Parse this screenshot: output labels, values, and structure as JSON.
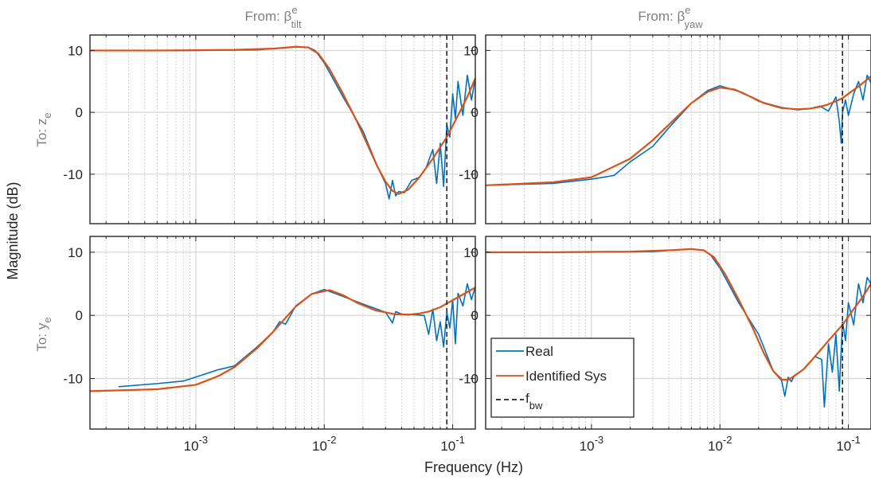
{
  "figure": {
    "xlabel": "Frequency  (Hz)",
    "ylabel": "Magnitude (dB)"
  },
  "columns": [
    {
      "from_label": "From: β",
      "sym_sup": "e",
      "sym_sub": "tilt"
    },
    {
      "from_label": "From: β",
      "sym_sup": "e",
      "sym_sub": "yaw"
    }
  ],
  "rows": [
    {
      "to_label": "To: z",
      "sub": "e"
    },
    {
      "to_label": "To: y",
      "sub": "e"
    }
  ],
  "legend": {
    "items": [
      {
        "label": "Real",
        "color": "#0072BD",
        "dash": false
      },
      {
        "label": "Identified Sys",
        "color": "#D95319",
        "dash": false
      },
      {
        "label": "f",
        "sub": "bw",
        "color": "#262626",
        "dash": true
      }
    ]
  },
  "chart_data": [
    {
      "type": "line",
      "from": "β^e_tilt",
      "to": "z_e",
      "xscale": "log",
      "xlim": [
        0.00015,
        0.15
      ],
      "ylim": [
        -18,
        12.5
      ],
      "xticks": [
        0.001,
        0.01,
        0.1
      ],
      "yticks": [
        -10,
        0,
        10
      ],
      "grid": true,
      "fbw": 0.09,
      "series": [
        {
          "name": "Identified Sys",
          "color": "#D95319",
          "x": [
            0.00015,
            0.0005,
            0.002,
            0.004,
            0.006,
            0.0075,
            0.009,
            0.011,
            0.014,
            0.018,
            0.022,
            0.026,
            0.03,
            0.034,
            0.038,
            0.045,
            0.055,
            0.07,
            0.09,
            0.11,
            0.13,
            0.15
          ],
          "y": [
            10,
            10,
            10.1,
            10.3,
            10.6,
            10.5,
            9.5,
            7,
            3,
            -1.5,
            -5.5,
            -8.8,
            -11.2,
            -12.7,
            -13.2,
            -12.5,
            -10.5,
            -7.5,
            -4,
            -0.5,
            2.5,
            5.5
          ]
        },
        {
          "name": "Real",
          "color": "#0072BD",
          "x": [
            0.00015,
            0.001,
            0.003,
            0.006,
            0.0075,
            0.0085,
            0.01,
            0.014,
            0.02,
            0.026,
            0.03,
            0.032,
            0.034,
            0.036,
            0.038,
            0.042,
            0.048,
            0.055,
            0.062,
            0.07,
            0.075,
            0.08,
            0.085,
            0.09,
            0.095,
            0.1,
            0.105,
            0.11,
            0.12,
            0.13,
            0.14,
            0.15
          ],
          "y": [
            10,
            10,
            10.1,
            10.6,
            10.5,
            10,
            8,
            2.5,
            -3,
            -8.8,
            -11.5,
            -14,
            -11,
            -13.5,
            -12.8,
            -13,
            -11,
            -10.5,
            -9,
            -6,
            -11.5,
            -5,
            -12,
            -2,
            -4,
            3,
            -1,
            5,
            -0.5,
            6,
            2,
            5.5
          ]
        }
      ]
    },
    {
      "type": "line",
      "from": "β^e_yaw",
      "to": "z_e",
      "xscale": "log",
      "xlim": [
        0.00015,
        0.15
      ],
      "ylim": [
        -18,
        12.5
      ],
      "xticks": [
        0.001,
        0.01,
        0.1
      ],
      "yticks": [
        -10,
        0,
        10
      ],
      "grid": true,
      "fbw": 0.09,
      "series": [
        {
          "name": "Identified Sys",
          "color": "#D95319",
          "x": [
            0.00015,
            0.0005,
            0.001,
            0.002,
            0.003,
            0.004,
            0.006,
            0.008,
            0.01,
            0.013,
            0.017,
            0.022,
            0.03,
            0.04,
            0.05,
            0.06,
            0.07,
            0.08,
            0.09,
            0.1,
            0.12,
            0.15
          ],
          "y": [
            -11.8,
            -11.3,
            -10.5,
            -7.5,
            -4.5,
            -2,
            1.5,
            3.3,
            4,
            3.7,
            2.6,
            1.5,
            0.7,
            0.5,
            0.6,
            0.9,
            1.3,
            1.8,
            2.3,
            3,
            4.2,
            5.8
          ]
        },
        {
          "name": "Real",
          "color": "#0072BD",
          "x": [
            0.00015,
            0.0005,
            0.001,
            0.0015,
            0.002,
            0.003,
            0.004,
            0.006,
            0.008,
            0.01,
            0.015,
            0.02,
            0.03,
            0.04,
            0.05,
            0.06,
            0.07,
            0.08,
            0.085,
            0.088,
            0.09,
            0.095,
            0.1,
            0.11,
            0.12,
            0.13,
            0.14,
            0.15
          ],
          "y": [
            -11.8,
            -11.5,
            -10.8,
            -10.2,
            -8,
            -5.5,
            -2.5,
            1.5,
            3.5,
            4.3,
            3.2,
            1.8,
            0.8,
            0.4,
            0.6,
            1,
            0.2,
            2.5,
            -1.5,
            -5,
            0,
            2,
            -0.5,
            3,
            5,
            2,
            6,
            4.8
          ]
        }
      ]
    },
    {
      "type": "line",
      "from": "β^e_tilt",
      "to": "y_e",
      "xscale": "log",
      "xlim": [
        0.00015,
        0.15
      ],
      "ylim": [
        -18,
        12.5
      ],
      "xticks": [
        0.001,
        0.01,
        0.1
      ],
      "yticks": [
        -10,
        0,
        10
      ],
      "grid": true,
      "fbw": 0.09,
      "series": [
        {
          "name": "Identified Sys",
          "color": "#D95319",
          "x": [
            0.00015,
            0.0005,
            0.001,
            0.0015,
            0.002,
            0.003,
            0.004,
            0.006,
            0.008,
            0.011,
            0.014,
            0.018,
            0.025,
            0.035,
            0.045,
            0.055,
            0.065,
            0.08,
            0.1,
            0.12,
            0.15
          ],
          "y": [
            -12,
            -11.7,
            -11,
            -9.6,
            -8.2,
            -5.2,
            -2.6,
            1.4,
            3.4,
            4,
            3.2,
            2,
            0.8,
            0.2,
            0.1,
            0.3,
            0.6,
            1.3,
            2.4,
            3.3,
            4.4
          ]
        },
        {
          "name": "Real",
          "color": "#0072BD",
          "x": [
            0.00025,
            0.0005,
            0.0008,
            0.0015,
            0.002,
            0.003,
            0.004,
            0.0045,
            0.005,
            0.006,
            0.008,
            0.01,
            0.014,
            0.02,
            0.03,
            0.034,
            0.036,
            0.04,
            0.05,
            0.06,
            0.065,
            0.07,
            0.075,
            0.08,
            0.085,
            0.09,
            0.095,
            0.1,
            0.105,
            0.11,
            0.12,
            0.13,
            0.14,
            0.15
          ],
          "y": [
            -11.3,
            -10.8,
            -10.4,
            -8.6,
            -8,
            -5,
            -2.6,
            -1,
            -1.4,
            1.5,
            3.4,
            4.1,
            3,
            1.8,
            0.5,
            -1.2,
            0.6,
            0.2,
            0.1,
            0,
            -3,
            1,
            -4,
            -1,
            -5,
            0.5,
            -2,
            2.5,
            -4.5,
            3.5,
            1.5,
            5,
            2.5,
            4.5
          ]
        }
      ]
    },
    {
      "type": "line",
      "from": "β^e_yaw",
      "to": "y_e",
      "xscale": "log",
      "xlim": [
        0.00015,
        0.15
      ],
      "ylim": [
        -18,
        12.5
      ],
      "xticks": [
        0.001,
        0.01,
        0.1
      ],
      "yticks": [
        -10,
        0,
        10
      ],
      "grid": true,
      "fbw": 0.09,
      "series": [
        {
          "name": "Identified Sys",
          "color": "#D95319",
          "x": [
            0.00015,
            0.0005,
            0.002,
            0.004,
            0.006,
            0.0075,
            0.009,
            0.011,
            0.014,
            0.018,
            0.022,
            0.026,
            0.03,
            0.034,
            0.038,
            0.045,
            0.055,
            0.07,
            0.09,
            0.11,
            0.13,
            0.15
          ],
          "y": [
            10,
            10,
            10.1,
            10.3,
            10.5,
            10.3,
            9.2,
            6.5,
            2.5,
            -2,
            -6,
            -8.8,
            -10.2,
            -10.2,
            -9.6,
            -8.5,
            -6.5,
            -4,
            -1.5,
            1,
            3,
            5
          ]
        },
        {
          "name": "Real",
          "color": "#0072BD",
          "x": [
            0.00015,
            0.001,
            0.003,
            0.006,
            0.0075,
            0.0085,
            0.01,
            0.014,
            0.02,
            0.026,
            0.03,
            0.032,
            0.034,
            0.036,
            0.038,
            0.045,
            0.055,
            0.062,
            0.065,
            0.07,
            0.075,
            0.08,
            0.085,
            0.09,
            0.095,
            0.1,
            0.11,
            0.12,
            0.13,
            0.14,
            0.15
          ],
          "y": [
            10,
            10,
            10.1,
            10.5,
            10.3,
            9.5,
            7.5,
            2,
            -3,
            -8.8,
            -10,
            -12.8,
            -9.8,
            -10.5,
            -9.5,
            -8.5,
            -6.5,
            -7,
            -14.5,
            -4.5,
            -9,
            -3,
            -12,
            -1,
            -4,
            2,
            -1.5,
            5,
            2,
            6,
            5
          ]
        }
      ]
    }
  ]
}
